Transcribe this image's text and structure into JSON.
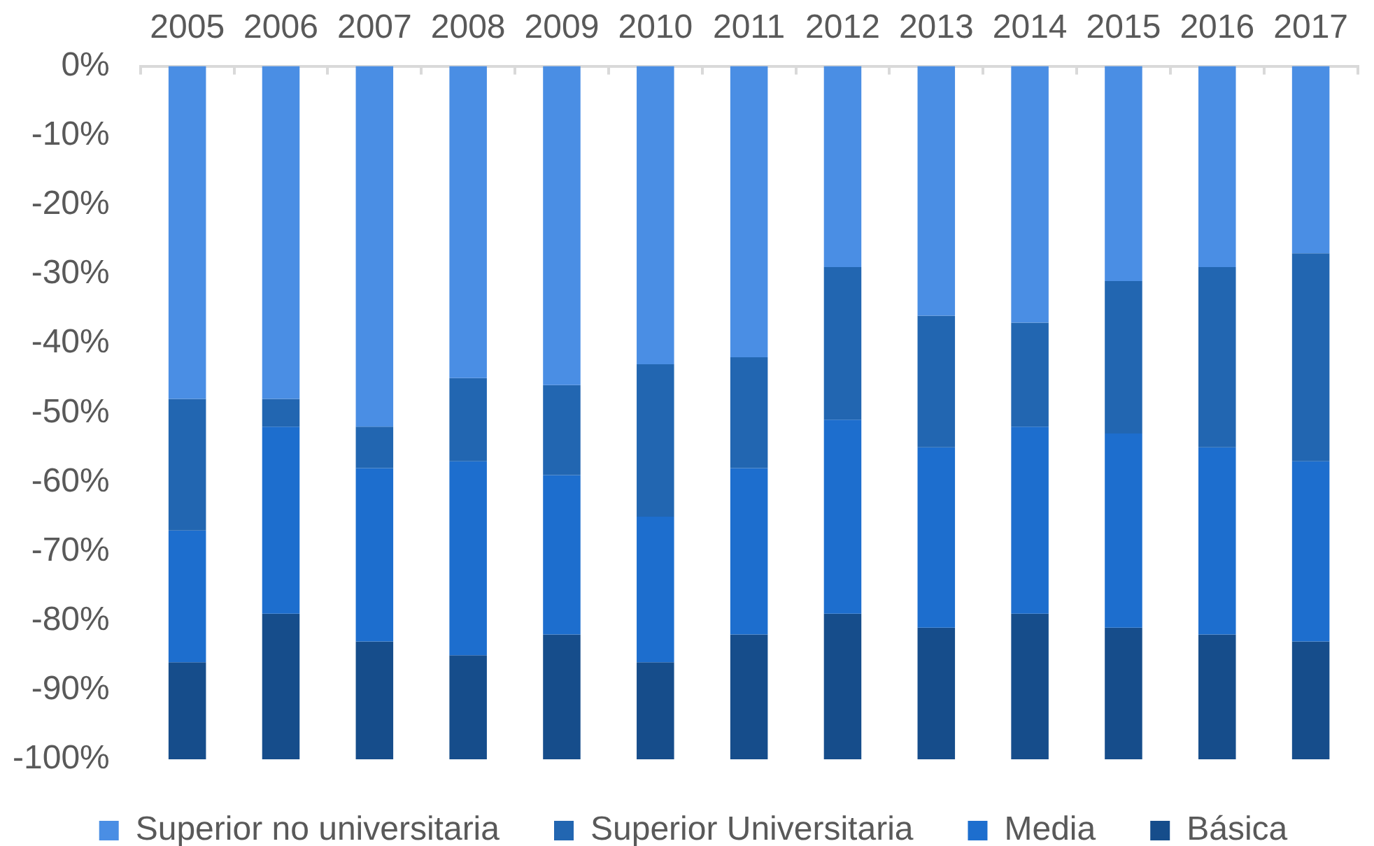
{
  "chart_data": {
    "type": "bar",
    "stacked": true,
    "categories": [
      "2005",
      "2006",
      "2007",
      "2008",
      "2009",
      "2010",
      "2011",
      "2012",
      "2013",
      "2014",
      "2015",
      "2016",
      "2017"
    ],
    "series": [
      {
        "name": "Superior no universitaria",
        "color": "#4a8ee4",
        "values": [
          -48,
          -48,
          -52,
          -45,
          -46,
          -43,
          -42,
          -29,
          -36,
          -37,
          -31,
          -29,
          -27
        ]
      },
      {
        "name": "Superior Universitaria",
        "color": "#2266b1",
        "values": [
          -19,
          -4,
          -6,
          -12,
          -13,
          -22,
          -16,
          -22,
          -19,
          -15,
          -22,
          -26,
          -30
        ]
      },
      {
        "name": "Media",
        "color": "#1d6ece",
        "values": [
          -19,
          -27,
          -25,
          -28,
          -23,
          -21,
          -24,
          -28,
          -26,
          -27,
          -28,
          -27,
          -26
        ]
      },
      {
        "name": "Básica",
        "color": "#164d8b",
        "values": [
          -14,
          -21,
          -17,
          -15,
          -18,
          -14,
          -18,
          -21,
          -19,
          -21,
          -19,
          -18,
          -17
        ]
      }
    ],
    "ylim": [
      -100,
      0
    ],
    "yticks": [
      {
        "value": 0,
        "label": "0%"
      },
      {
        "value": -10,
        "label": "-10%"
      },
      {
        "value": -20,
        "label": "-20%"
      },
      {
        "value": -30,
        "label": "-30%"
      },
      {
        "value": -40,
        "label": "-40%"
      },
      {
        "value": -50,
        "label": "-50%"
      },
      {
        "value": -60,
        "label": "-60%"
      },
      {
        "value": -70,
        "label": "-70%"
      },
      {
        "value": -80,
        "label": "-80%"
      },
      {
        "value": -90,
        "label": "-90%"
      },
      {
        "value": -100,
        "label": "-100%"
      }
    ],
    "grid": false,
    "legend": "bottom"
  }
}
